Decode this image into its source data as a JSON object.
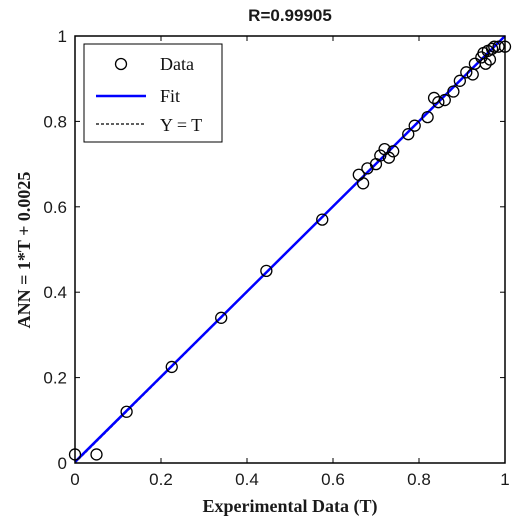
{
  "chart_data": {
    "type": "scatter",
    "title": "R=0.99905",
    "xlabel": "Experimental Data (T)",
    "ylabel": "ANN = 1*T + 0.0025",
    "xlim": [
      0,
      1
    ],
    "ylim": [
      0,
      1
    ],
    "x_ticks": [
      "0",
      "0.2",
      "0.4",
      "0.6",
      "0.8",
      "1"
    ],
    "y_ticks": [
      "0",
      "0.2",
      "0.4",
      "0.6",
      "0.8",
      "1"
    ],
    "grid": false,
    "legend_position": "top-left",
    "legend": [
      "Data",
      "Fit",
      "Y = T"
    ],
    "colors": {
      "data": "#000000",
      "fit": "#0000ff",
      "identity": "#000000"
    },
    "series": [
      {
        "name": "Data",
        "marker": "open-circle",
        "points": [
          [
            0.0,
            0.02
          ],
          [
            0.05,
            0.02
          ],
          [
            0.12,
            0.12
          ],
          [
            0.225,
            0.225
          ],
          [
            0.34,
            0.34
          ],
          [
            0.445,
            0.45
          ],
          [
            0.575,
            0.57
          ],
          [
            0.66,
            0.675
          ],
          [
            0.67,
            0.655
          ],
          [
            0.68,
            0.69
          ],
          [
            0.7,
            0.7
          ],
          [
            0.71,
            0.72
          ],
          [
            0.72,
            0.735
          ],
          [
            0.73,
            0.715
          ],
          [
            0.74,
            0.73
          ],
          [
            0.775,
            0.77
          ],
          [
            0.79,
            0.79
          ],
          [
            0.82,
            0.81
          ],
          [
            0.835,
            0.855
          ],
          [
            0.845,
            0.845
          ],
          [
            0.86,
            0.85
          ],
          [
            0.88,
            0.87
          ],
          [
            0.895,
            0.895
          ],
          [
            0.91,
            0.915
          ],
          [
            0.925,
            0.91
          ],
          [
            0.93,
            0.935
          ],
          [
            0.945,
            0.95
          ],
          [
            0.95,
            0.96
          ],
          [
            0.955,
            0.935
          ],
          [
            0.96,
            0.965
          ],
          [
            0.965,
            0.945
          ],
          [
            0.97,
            0.97
          ],
          [
            0.975,
            0.975
          ],
          [
            0.985,
            0.975
          ],
          [
            1.0,
            0.975
          ]
        ]
      },
      {
        "name": "Fit",
        "slope": 1.0,
        "intercept": 0.0025
      },
      {
        "name": "Y = T",
        "slope": 1.0,
        "intercept": 0.0
      }
    ]
  }
}
